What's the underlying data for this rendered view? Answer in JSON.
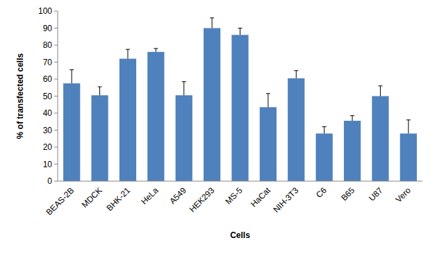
{
  "chart_data": {
    "type": "bar",
    "x_label": "Cells",
    "y_label": "% of transfected cells",
    "categories": [
      "BEAS-2B",
      "MDCK",
      "BHK-21",
      "HeLa",
      "A549",
      "HEK293",
      "MS-5",
      "HaCat",
      "NIH-3T3",
      "C6",
      "B65",
      "U87",
      "Vero"
    ],
    "values": [
      57.5,
      50.5,
      72,
      76,
      50.5,
      90,
      86,
      43.5,
      60.5,
      28,
      35.5,
      50,
      28
    ],
    "errors": [
      8,
      5,
      5.5,
      2,
      8,
      6,
      4,
      8,
      4.5,
      4,
      3,
      6,
      8
    ],
    "color": "#4f81bd",
    "ylim": [
      0,
      100
    ],
    "yticks": [
      0,
      10,
      20,
      30,
      40,
      50,
      60,
      70,
      80,
      90,
      100
    ],
    "grid": false
  }
}
